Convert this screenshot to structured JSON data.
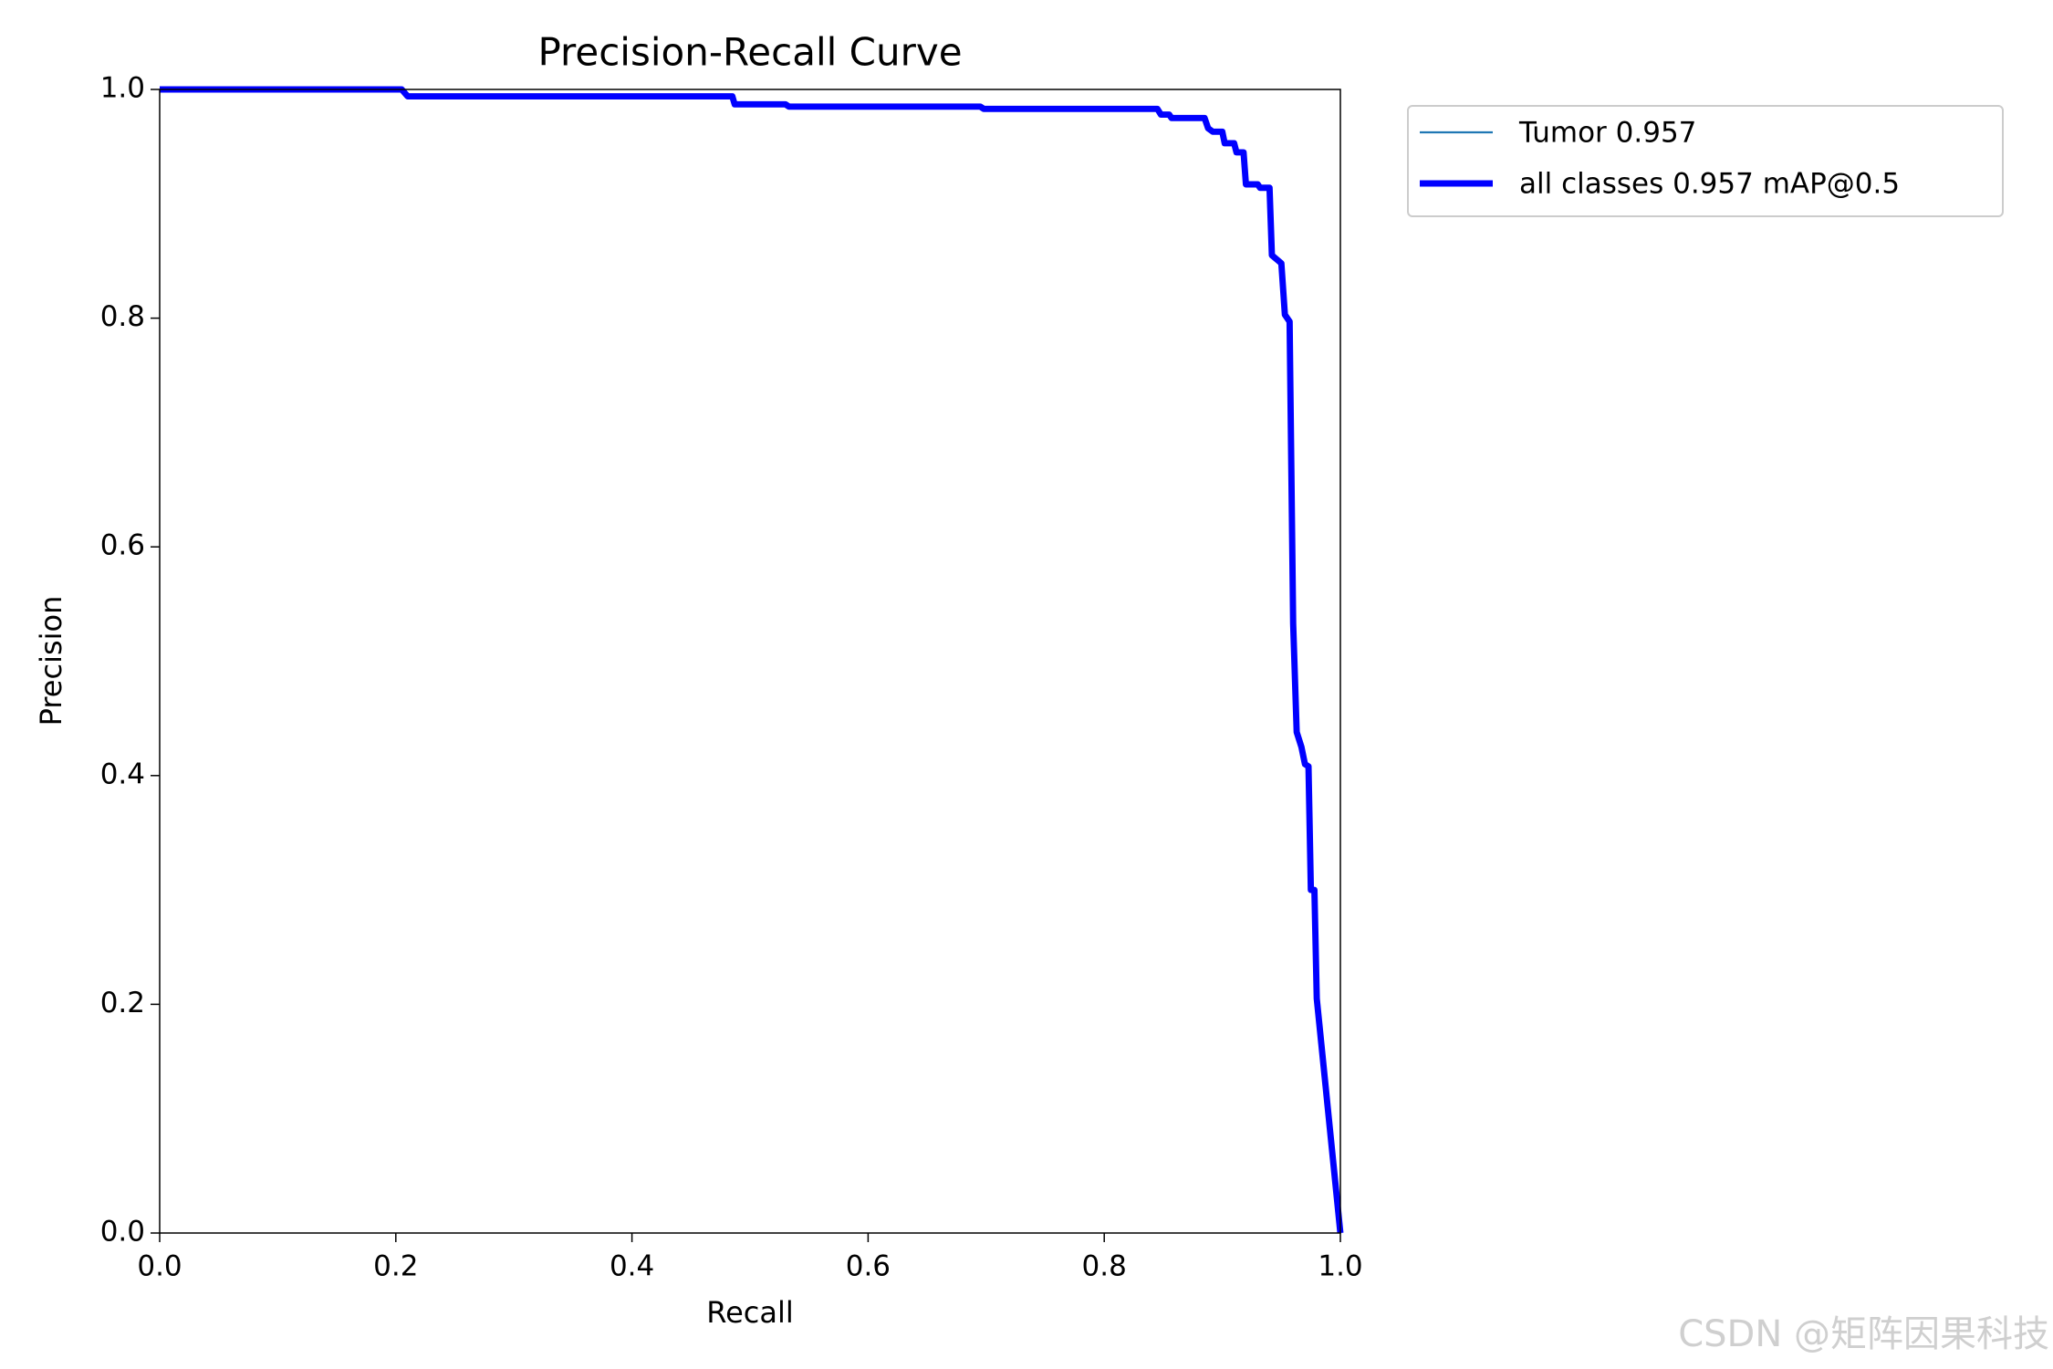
{
  "chart_data": {
    "type": "line",
    "title": "Precision-Recall Curve",
    "xlabel": "Recall",
    "ylabel": "Precision",
    "x": [
      0,
      0.205,
      0.21,
      0.485,
      0.487,
      0.53,
      0.533,
      0.695,
      0.698,
      0.845,
      0.848,
      0.855,
      0.857,
      0.885,
      0.888,
      0.892,
      0.9,
      0.902,
      0.91,
      0.912,
      0.918,
      0.92,
      0.93,
      0.932,
      0.94,
      0.942,
      0.95,
      0.953,
      0.957,
      0.96,
      0.963,
      0.967,
      0.97,
      0.973,
      0.975,
      0.978,
      0.98,
      1.0
    ],
    "series": [
      {
        "name": "Tumor 0.957",
        "color": "#1f77b4",
        "width": 1,
        "values": [
          1.0,
          1.0,
          0.994,
          0.994,
          0.987,
          0.987,
          0.985,
          0.985,
          0.983,
          0.983,
          0.978,
          0.978,
          0.975,
          0.975,
          0.966,
          0.963,
          0.963,
          0.953,
          0.953,
          0.945,
          0.945,
          0.917,
          0.917,
          0.914,
          0.914,
          0.855,
          0.848,
          0.803,
          0.797,
          0.533,
          0.438,
          0.425,
          0.41,
          0.408,
          0.3,
          0.3,
          0.205,
          0.0
        ]
      },
      {
        "name": "all classes 0.957 mAP@0.5",
        "color": "#0000ff",
        "width": 3,
        "values": [
          1.0,
          1.0,
          0.994,
          0.994,
          0.987,
          0.987,
          0.985,
          0.985,
          0.983,
          0.983,
          0.978,
          0.978,
          0.975,
          0.975,
          0.966,
          0.963,
          0.963,
          0.953,
          0.953,
          0.945,
          0.945,
          0.917,
          0.917,
          0.914,
          0.914,
          0.855,
          0.848,
          0.803,
          0.797,
          0.533,
          0.438,
          0.425,
          0.41,
          0.408,
          0.3,
          0.3,
          0.205,
          0.0
        ]
      }
    ],
    "xlim": [
      0,
      1
    ],
    "ylim": [
      0,
      1
    ],
    "xticks": [
      {
        "value": 0,
        "label": "0.0"
      },
      0.2,
      0.4,
      0.6,
      0.8,
      {
        "value": 1,
        "label": "1.0"
      }
    ],
    "yticks": [
      {
        "value": 0,
        "label": "0.0"
      },
      0.2,
      0.4,
      0.6,
      0.8,
      {
        "value": 1,
        "label": "1.0"
      }
    ],
    "grid": false,
    "legend": "outside-upper-right"
  },
  "watermark": "CSDN @矩阵因果科技"
}
